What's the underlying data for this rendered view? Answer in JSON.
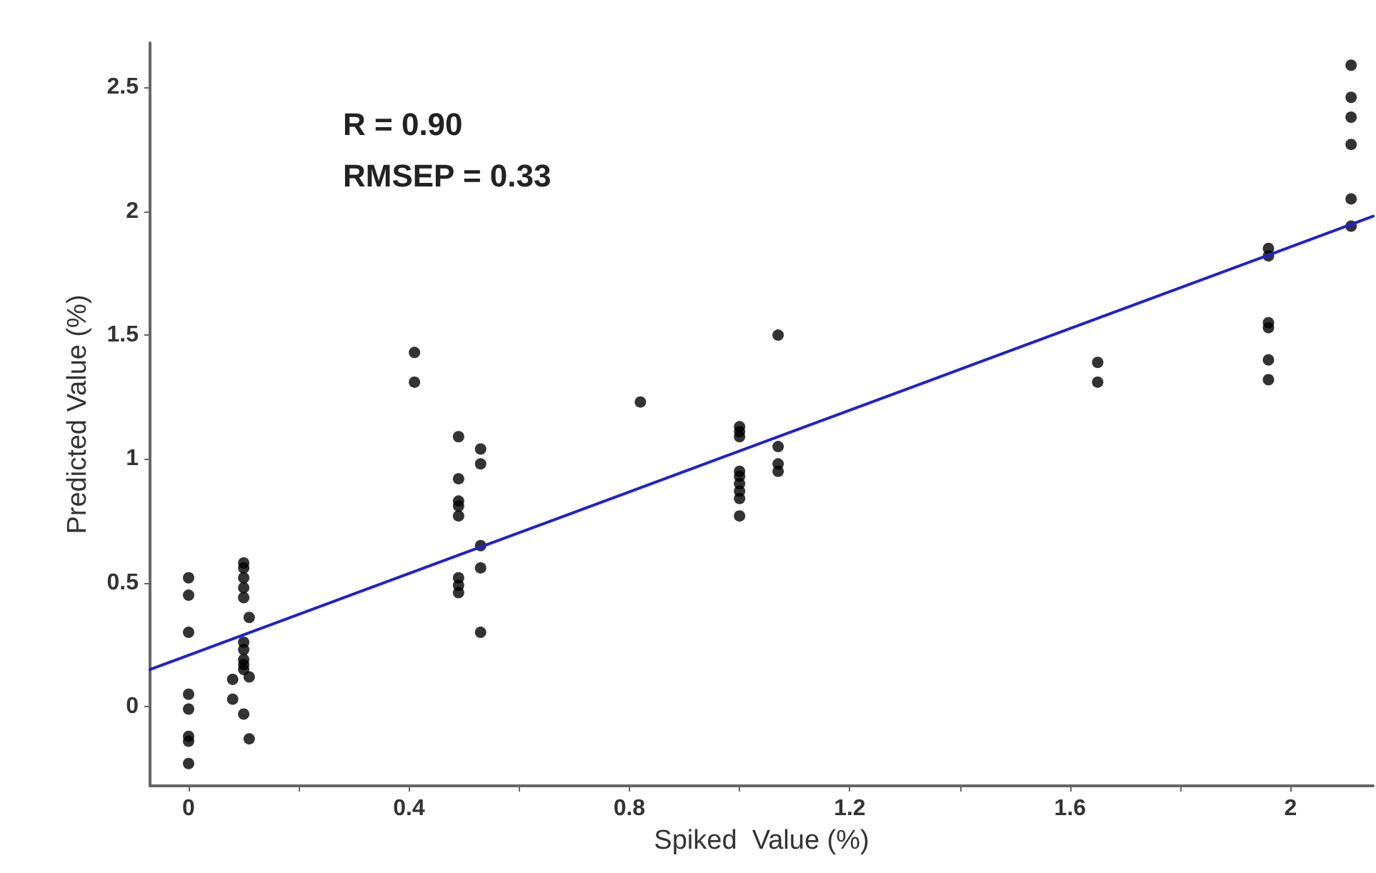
{
  "chart_data": {
    "type": "scatter",
    "xlabel": "Spiked  Value (%)",
    "ylabel": "Predicted Value (%)",
    "annotations": [
      "R = 0.90",
      "RMSEP = 0.33"
    ],
    "xlim": [
      -0.07,
      2.15
    ],
    "xticks": [
      0,
      {
        "value": 0.2,
        "label": null
      },
      0.4,
      {
        "value": 0.6,
        "label": null
      },
      0.8,
      {
        "value": 1.0,
        "label": null
      },
      1.2,
      {
        "value": 1.4,
        "label": null
      },
      1.6,
      {
        "value": 1.8,
        "label": null
      },
      2
    ],
    "ylim": [
      -0.32,
      2.68
    ],
    "yticks": [
      0,
      0.5,
      1,
      1.5,
      2,
      2.5
    ],
    "grid": false,
    "marker": "circle",
    "series": [
      {
        "color": "#000000",
        "x": [
          0,
          0,
          0,
          0,
          0,
          0,
          0,
          0,
          0.1,
          0.1,
          0.1,
          0.1,
          0.1,
          0.1,
          0.1,
          0.1,
          0.1,
          0.1,
          0.1,
          0.11,
          0.11,
          0.11,
          0.08,
          0.08,
          0.41,
          0.41,
          0.49,
          0.49,
          0.49,
          0.49,
          0.49,
          0.49,
          0.49,
          0.49,
          0.53,
          0.53,
          0.53,
          0.53,
          0.53,
          0.82,
          1.0,
          1.0,
          1.0,
          1.0,
          1.0,
          1.0,
          1.0,
          1.0,
          1.0,
          1.07,
          1.07,
          1.07,
          1.07,
          1.65,
          1.65,
          1.96,
          1.96,
          1.96,
          1.96,
          1.96,
          1.96,
          2.11,
          2.11,
          2.11,
          2.11,
          2.11,
          2.11
        ],
        "values": [
          0.52,
          0.45,
          0.3,
          0.05,
          -0.01,
          -0.12,
          -0.14,
          -0.23,
          0.58,
          0.56,
          0.52,
          0.48,
          0.44,
          0.26,
          0.23,
          0.19,
          0.17,
          0.15,
          -0.03,
          0.36,
          0.12,
          -0.13,
          0.11,
          0.03,
          1.43,
          1.31,
          1.09,
          0.92,
          0.83,
          0.81,
          0.77,
          0.52,
          0.49,
          0.46,
          1.04,
          0.98,
          0.65,
          0.56,
          0.3,
          1.23,
          1.13,
          1.11,
          1.09,
          0.95,
          0.93,
          0.9,
          0.87,
          0.84,
          0.77,
          1.5,
          1.05,
          0.98,
          0.95,
          1.39,
          1.31,
          1.85,
          1.82,
          1.55,
          1.53,
          1.4,
          1.32,
          2.59,
          2.46,
          2.38,
          2.27,
          2.05,
          1.94
        ]
      },
      {
        "type": "line",
        "color": "#2020d0",
        "marker": "none",
        "x": [
          -0.07,
          2.15
        ],
        "values": [
          0.15,
          1.98
        ]
      }
    ]
  }
}
